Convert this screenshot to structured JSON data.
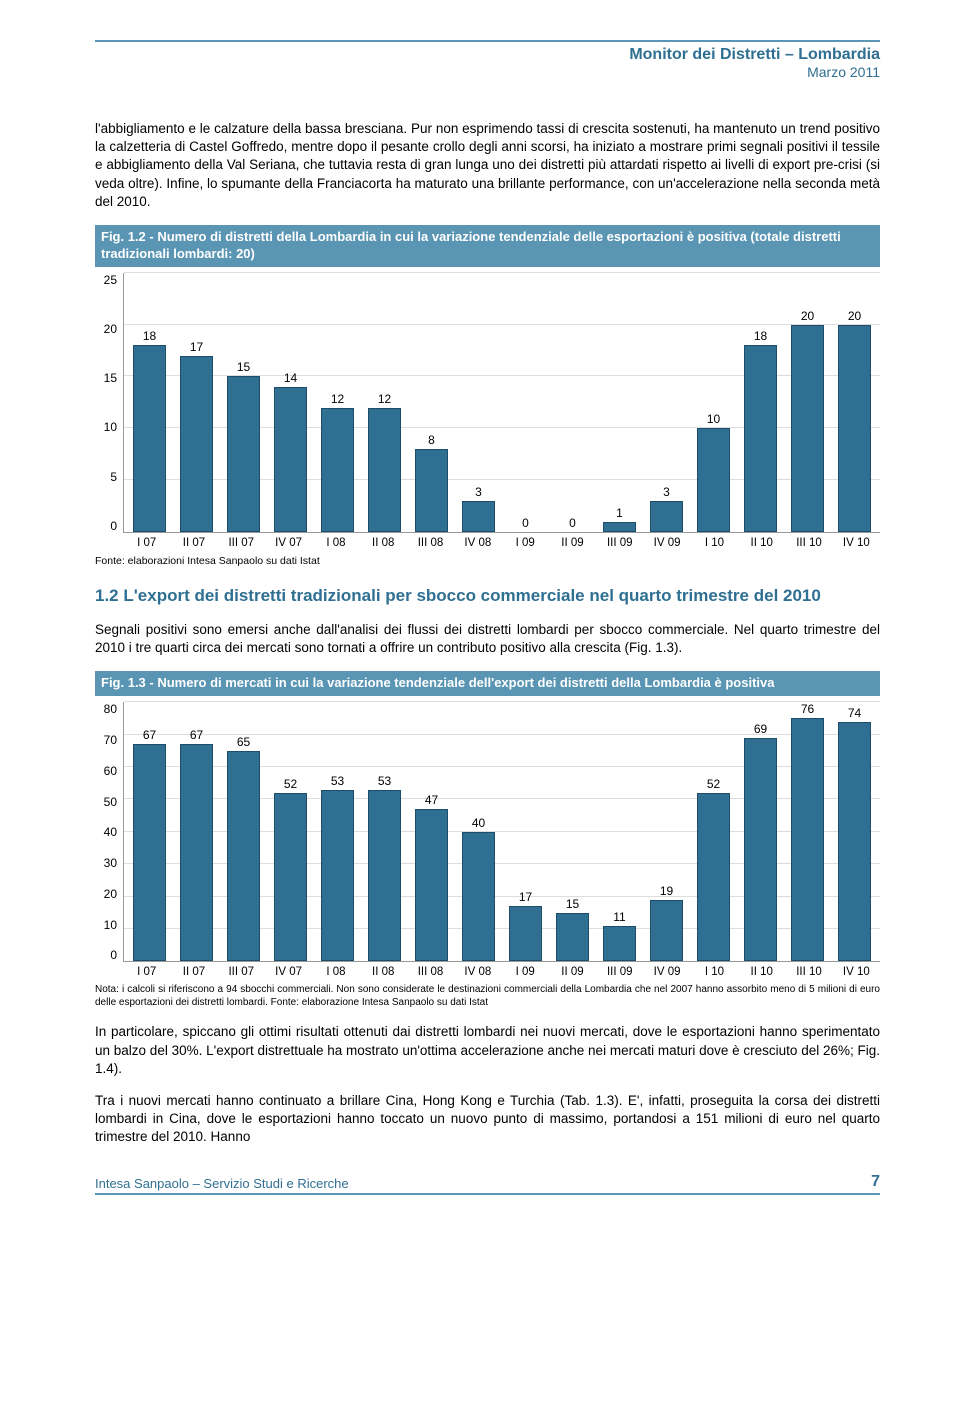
{
  "header": {
    "title": "Monitor dei Distretti – Lombardia",
    "date": "Marzo 2011"
  },
  "para1": "l'abbigliamento e le calzature della bassa bresciana. Pur non esprimendo tassi di crescita sostenuti, ha mantenuto un trend positivo la calzetteria di Castel Goffredo, mentre dopo il pesante crollo degli anni scorsi, ha iniziato a mostrare primi segnali positivi il tessile e abbigliamento della Val Seriana, che tuttavia resta di gran lunga uno dei distretti più attardati rispetto ai livelli di export pre-crisi (si veda oltre). Infine, lo spumante della Franciacorta ha maturato una brillante performance, con un'accelerazione nella seconda metà del 2010.",
  "fig12": {
    "title": "Fig. 1.2 - Numero di distretti della Lombardia in cui la variazione tendenziale delle esportazioni è positiva (totale distretti tradizionali lombardi: 20)",
    "type": "bar",
    "ymax": 25,
    "ytick_step": 5,
    "bar_color": "#2f6f92",
    "bar_border": "#1d4d68",
    "grid_color": "#dddddd",
    "categories": [
      "I 07",
      "II 07",
      "III 07",
      "IV 07",
      "I 08",
      "II 08",
      "III 08",
      "IV 08",
      "I 09",
      "II 09",
      "III 09",
      "IV 09",
      "I 10",
      "II 10",
      "III 10",
      "IV 10"
    ],
    "values": [
      18,
      17,
      15,
      14,
      12,
      12,
      8,
      3,
      0,
      0,
      1,
      3,
      10,
      18,
      20,
      20
    ],
    "source": "Fonte: elaborazioni Intesa Sanpaolo su dati Istat"
  },
  "section12": "1.2 L'export dei distretti tradizionali per sbocco commerciale nel quarto trimestre del 2010",
  "para2": "Segnali positivi sono emersi anche dall'analisi dei flussi dei distretti lombardi per sbocco commerciale. Nel quarto trimestre del 2010 i tre quarti circa dei mercati sono tornati a offrire un contributo positivo alla crescita (Fig. 1.3).",
  "fig13": {
    "title": "Fig. 1.3 - Numero di mercati in cui la variazione tendenziale dell'export dei distretti della Lombardia è positiva",
    "type": "bar",
    "ymax": 80,
    "ytick_step": 10,
    "bar_color": "#2f6f92",
    "bar_border": "#1d4d68",
    "grid_color": "#dddddd",
    "categories": [
      "I 07",
      "II 07",
      "III 07",
      "IV 07",
      "I 08",
      "II 08",
      "III 08",
      "IV 08",
      "I 09",
      "II 09",
      "III 09",
      "IV 09",
      "I 10",
      "II 10",
      "III 10",
      "IV 10"
    ],
    "values": [
      67,
      67,
      65,
      52,
      53,
      53,
      47,
      40,
      17,
      15,
      11,
      19,
      52,
      69,
      76,
      74
    ],
    "note": "Nota: i calcoli si riferiscono a 94 sbocchi commerciali. Non sono considerate le destinazioni commerciali della Lombardia che nel 2007 hanno assorbito meno di 5 milioni di euro delle esportazioni dei distretti lombardi. Fonte: elaborazione Intesa Sanpaolo su dati Istat"
  },
  "para3": "In particolare, spiccano gli ottimi risultati ottenuti dai distretti lombardi nei nuovi mercati, dove le esportazioni hanno sperimentato un balzo del 30%. L'export distrettuale ha mostrato un'ottima accelerazione anche nei mercati maturi dove è cresciuto del 26%; Fig. 1.4).",
  "para4": "Tra i nuovi mercati hanno continuato a brillare Cina, Hong Kong e Turchia (Tab. 1.3). E', infatti, proseguita la corsa dei distretti lombardi in Cina, dove le esportazioni hanno toccato un nuovo punto di massimo, portandosi a 151 milioni di euro nel quarto trimestre del 2010. Hanno",
  "footer": {
    "left": "Intesa Sanpaolo – Servizio Studi e Ricerche",
    "page": "7"
  }
}
